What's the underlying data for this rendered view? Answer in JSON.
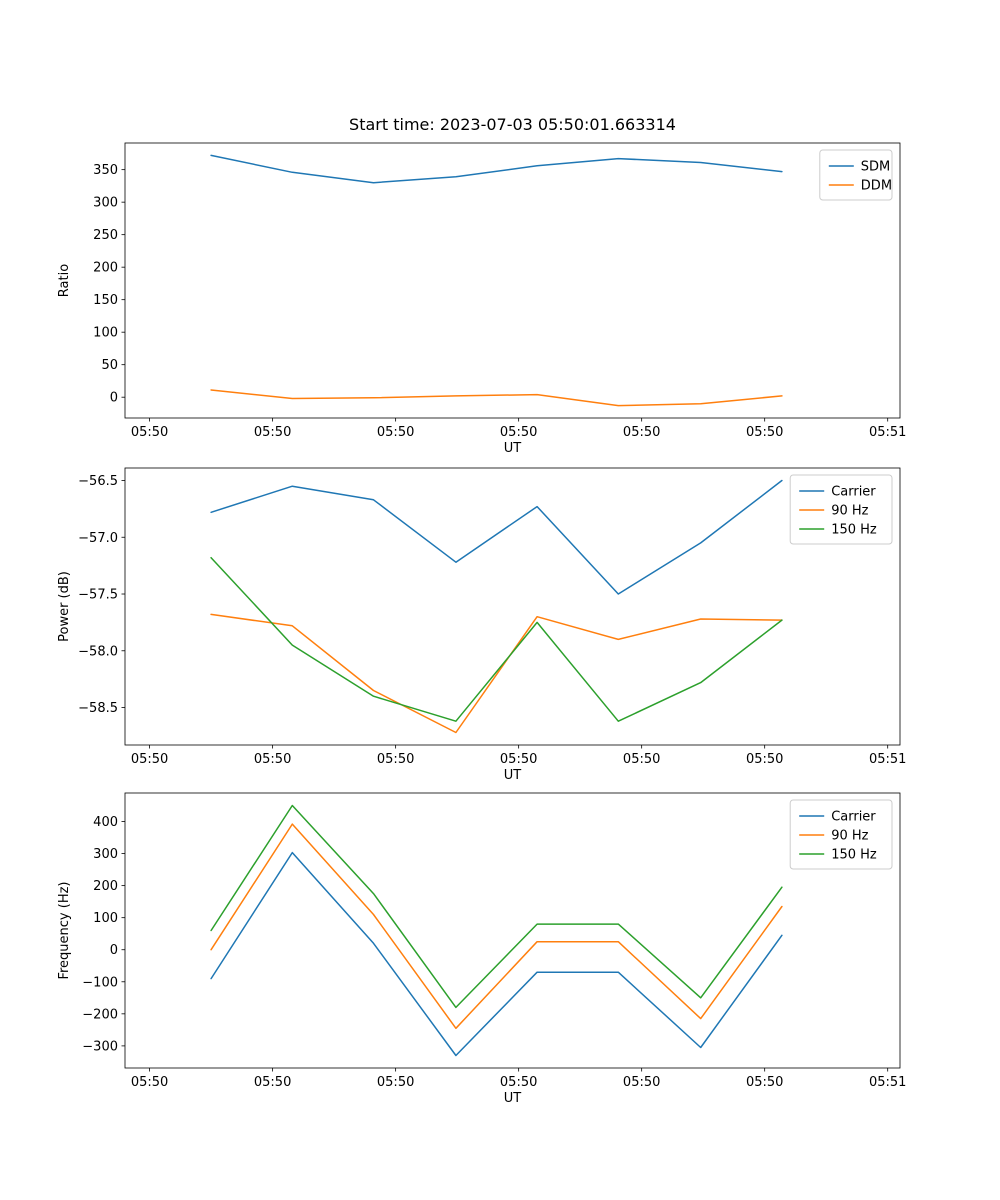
{
  "figure": {
    "background": "#ffffff",
    "title": "Start time: 2023-07-03 05:50:01.663314"
  },
  "chart_data": [
    {
      "type": "line",
      "title": "Start time: 2023-07-03 05:50:01.663314",
      "xlabel": "UT",
      "ylabel": "Ratio",
      "xlim": [
        -2,
        61
      ],
      "ylim": [
        -32,
        391
      ],
      "xticks": [
        0,
        10,
        20,
        30,
        40,
        50,
        60
      ],
      "xtick_labels": [
        "05:50",
        "05:50",
        "05:50",
        "05:50",
        "05:50",
        "05:50",
        "05:51"
      ],
      "yticks": [
        0,
        50,
        100,
        150,
        200,
        250,
        300,
        350
      ],
      "ytick_labels": [
        "0",
        "50",
        "100",
        "150",
        "200",
        "250",
        "300",
        "350"
      ],
      "x": [
        5,
        11.6,
        18.2,
        24.9,
        31.5,
        38.1,
        44.8,
        51.4
      ],
      "series": [
        {
          "name": "SDM",
          "color": "#1f77b4",
          "values": [
            372,
            346,
            330,
            339,
            356,
            367,
            361,
            347
          ]
        },
        {
          "name": "DDM",
          "color": "#ff7f0e",
          "values": [
            11,
            -2,
            -1,
            2,
            4,
            -13,
            -10,
            2
          ]
        }
      ],
      "legend_position": "top-right",
      "grid": false
    },
    {
      "type": "line",
      "title": "",
      "xlabel": "UT",
      "ylabel": "Power (dB)",
      "xlim": [
        -2,
        61
      ],
      "ylim": [
        -58.83,
        -56.39
      ],
      "xticks": [
        0,
        10,
        20,
        30,
        40,
        50,
        60
      ],
      "xtick_labels": [
        "05:50",
        "05:50",
        "05:50",
        "05:50",
        "05:50",
        "05:50",
        "05:51"
      ],
      "yticks": [
        -56.5,
        -57.0,
        -57.5,
        -58.0,
        -58.5
      ],
      "ytick_labels": [
        "−56.5",
        "−57.0",
        "−57.5",
        "−58.0",
        "−58.5"
      ],
      "x": [
        5,
        11.6,
        18.2,
        24.9,
        31.5,
        38.1,
        44.8,
        51.4
      ],
      "series": [
        {
          "name": "Carrier",
          "color": "#1f77b4",
          "values": [
            -56.78,
            -56.55,
            -56.67,
            -57.22,
            -56.73,
            -57.5,
            -57.05,
            -56.5
          ]
        },
        {
          "name": "90 Hz",
          "color": "#ff7f0e",
          "values": [
            -57.68,
            -57.78,
            -58.35,
            -58.72,
            -57.7,
            -57.9,
            -57.72,
            -57.73
          ]
        },
        {
          "name": "150 Hz",
          "color": "#2ca02c",
          "values": [
            -57.18,
            -57.95,
            -58.4,
            -58.62,
            -57.75,
            -58.62,
            -58.28,
            -57.73
          ]
        }
      ],
      "legend_position": "top-right",
      "grid": false
    },
    {
      "type": "line",
      "title": "",
      "xlabel": "UT",
      "ylabel": "Frequency (Hz)",
      "xlim": [
        -2,
        61
      ],
      "ylim": [
        -369,
        489
      ],
      "xticks": [
        0,
        10,
        20,
        30,
        40,
        50,
        60
      ],
      "xtick_labels": [
        "05:50",
        "05:50",
        "05:50",
        "05:50",
        "05:50",
        "05:50",
        "05:51"
      ],
      "yticks": [
        -300,
        -200,
        -100,
        0,
        100,
        200,
        300,
        400
      ],
      "ytick_labels": [
        "−300",
        "−200",
        "−100",
        "0",
        "100",
        "200",
        "300",
        "400"
      ],
      "x": [
        5,
        11.6,
        18.2,
        24.9,
        31.5,
        38.1,
        44.8,
        51.4
      ],
      "series": [
        {
          "name": "Carrier",
          "color": "#1f77b4",
          "values": [
            -90,
            303,
            20,
            -330,
            -70,
            -70,
            -305,
            45
          ]
        },
        {
          "name": "90 Hz",
          "color": "#ff7f0e",
          "values": [
            0,
            392,
            110,
            -245,
            25,
            25,
            -215,
            135
          ]
        },
        {
          "name": "150 Hz",
          "color": "#2ca02c",
          "values": [
            60,
            450,
            175,
            -180,
            80,
            80,
            -150,
            195
          ]
        }
      ],
      "legend_position": "top-right",
      "grid": false
    }
  ]
}
